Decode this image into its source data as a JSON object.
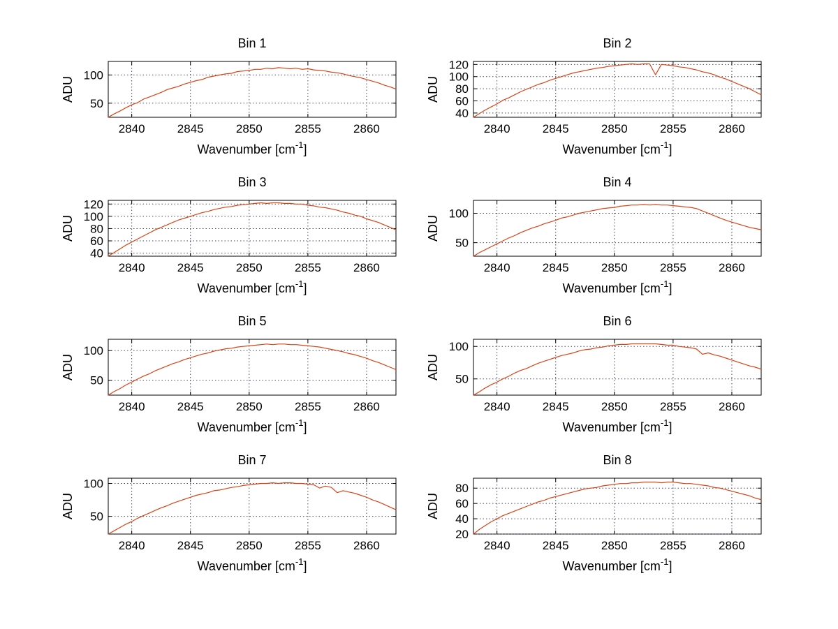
{
  "figure": {
    "background": "#ffffff",
    "line_color": "#d84315",
    "grid_color": "#44446a",
    "axis_color": "#000000",
    "text_color": "#000000"
  },
  "chart_data": [
    {
      "type": "line",
      "title": "Bin 1",
      "ylabel": "ADU",
      "xlabel": "Wavenumber [cm",
      "xlabel_sup": "-1",
      "xlabel_close": "]",
      "xlim": [
        2838,
        2862.5
      ],
      "ylim": [
        25,
        124
      ],
      "xticks": [
        2840,
        2845,
        2850,
        2855,
        2860
      ],
      "yticks": [
        50,
        100
      ],
      "x_start": 2838,
      "x_step": 0.5,
      "values": [
        25,
        31,
        36,
        42,
        47,
        51,
        57,
        61,
        65,
        69,
        74,
        77,
        80,
        84,
        87,
        90,
        92,
        96,
        98,
        100,
        102,
        103,
        106,
        107,
        108,
        110,
        110,
        112,
        111,
        113,
        112,
        111,
        112,
        110,
        111,
        109,
        108,
        107,
        105,
        104,
        102,
        99,
        97,
        95,
        92,
        89,
        86,
        82,
        79,
        75
      ]
    },
    {
      "type": "line",
      "title": "Bin 2",
      "ylabel": "ADU",
      "xlabel": "Wavenumber [cm",
      "xlabel_sup": "-1",
      "xlabel_close": "]",
      "xlim": [
        2838,
        2862.5
      ],
      "ylim": [
        33,
        125
      ],
      "xticks": [
        2840,
        2845,
        2850,
        2855,
        2860
      ],
      "yticks": [
        40,
        60,
        80,
        100,
        120
      ],
      "x_start": 2838,
      "x_step": 0.5,
      "values": [
        33,
        39,
        45,
        50,
        55,
        61,
        65,
        70,
        75,
        79,
        83,
        87,
        90,
        94,
        97,
        100,
        103,
        106,
        108,
        110,
        112,
        114,
        115,
        117,
        118,
        119,
        120,
        121,
        120,
        121,
        121,
        103,
        120,
        119,
        118,
        116,
        115,
        113,
        111,
        108,
        106,
        103,
        99,
        96,
        92,
        88,
        84,
        80,
        75,
        70
      ]
    },
    {
      "type": "line",
      "title": "Bin 3",
      "ylabel": "ADU",
      "xlabel": "Wavenumber [cm",
      "xlabel_sup": "-1",
      "xlabel_close": "]",
      "xlim": [
        2838,
        2862.5
      ],
      "ylim": [
        35,
        126
      ],
      "xticks": [
        2840,
        2845,
        2850,
        2855,
        2860
      ],
      "yticks": [
        40,
        60,
        80,
        100,
        120
      ],
      "x_start": 2838,
      "x_step": 0.5,
      "values": [
        35,
        41,
        47,
        53,
        58,
        63,
        68,
        73,
        78,
        82,
        86,
        90,
        94,
        97,
        100,
        103,
        106,
        108,
        111,
        113,
        115,
        116,
        118,
        119,
        120,
        121,
        122,
        121,
        122,
        122,
        121,
        121,
        120,
        120,
        118,
        117,
        115,
        114,
        112,
        110,
        107,
        105,
        102,
        100,
        96,
        93,
        90,
        86,
        82,
        78
      ]
    },
    {
      "type": "line",
      "title": "Bin 4",
      "ylabel": "ADU",
      "xlabel": "Wavenumber [cm",
      "xlabel_sup": "-1",
      "xlabel_close": "]",
      "xlim": [
        2838,
        2862.5
      ],
      "ylim": [
        27,
        122
      ],
      "xticks": [
        2840,
        2845,
        2850,
        2855,
        2860
      ],
      "yticks": [
        50,
        100
      ],
      "x_start": 2838,
      "x_step": 0.5,
      "values": [
        27,
        33,
        38,
        43,
        48,
        53,
        58,
        62,
        67,
        71,
        75,
        78,
        82,
        85,
        88,
        92,
        94,
        97,
        100,
        102,
        104,
        106,
        108,
        109,
        110,
        112,
        113,
        114,
        114,
        115,
        114,
        115,
        114,
        114,
        113,
        112,
        111,
        110,
        108,
        104,
        100,
        96,
        92,
        88,
        85,
        82,
        79,
        76,
        74,
        72
      ]
    },
    {
      "type": "line",
      "title": "Bin 5",
      "ylabel": "ADU",
      "xlabel": "Wavenumber [cm",
      "xlabel_sup": "-1",
      "xlabel_close": "]",
      "xlim": [
        2838,
        2862.5
      ],
      "ylim": [
        25,
        119
      ],
      "xticks": [
        2840,
        2845,
        2850,
        2855,
        2860
      ],
      "yticks": [
        50,
        100
      ],
      "x_start": 2838,
      "x_step": 0.5,
      "values": [
        25,
        31,
        36,
        42,
        47,
        52,
        57,
        61,
        66,
        70,
        74,
        78,
        81,
        85,
        88,
        91,
        94,
        96,
        99,
        101,
        103,
        104,
        106,
        107,
        108,
        109,
        110,
        111,
        110,
        111,
        111,
        110,
        110,
        109,
        108,
        107,
        106,
        104,
        102,
        100,
        98,
        95,
        93,
        90,
        87,
        83,
        80,
        76,
        72,
        68
      ]
    },
    {
      "type": "line",
      "title": "Bin 6",
      "ylabel": "ADU",
      "xlabel": "Wavenumber [cm",
      "xlabel_sup": "-1",
      "xlabel_close": "]",
      "xlim": [
        2838,
        2862.5
      ],
      "ylim": [
        25,
        111
      ],
      "xticks": [
        2840,
        2845,
        2850,
        2855,
        2860
      ],
      "yticks": [
        50,
        100
      ],
      "x_start": 2838,
      "x_step": 0.5,
      "values": [
        25,
        30,
        36,
        41,
        45,
        50,
        54,
        59,
        63,
        66,
        70,
        74,
        77,
        80,
        83,
        86,
        88,
        90,
        93,
        95,
        96,
        98,
        99,
        101,
        102,
        103,
        103,
        104,
        104,
        104,
        104,
        104,
        103,
        102,
        102,
        100,
        99,
        98,
        96,
        88,
        90,
        87,
        85,
        82,
        79,
        76,
        73,
        70,
        68,
        65
      ]
    },
    {
      "type": "line",
      "title": "Bin 7",
      "ylabel": "ADU",
      "xlabel": "Wavenumber [cm",
      "xlabel_sup": "-1",
      "xlabel_close": "]",
      "xlim": [
        2838,
        2862.5
      ],
      "ylim": [
        23,
        108
      ],
      "xticks": [
        2840,
        2845,
        2850,
        2855,
        2860
      ],
      "yticks": [
        50,
        100
      ],
      "x_start": 2838,
      "x_step": 0.5,
      "values": [
        23,
        28,
        33,
        38,
        42,
        47,
        51,
        55,
        59,
        63,
        66,
        70,
        73,
        76,
        79,
        82,
        84,
        86,
        89,
        90,
        92,
        94,
        95,
        97,
        98,
        99,
        100,
        100,
        101,
        100,
        101,
        101,
        100,
        100,
        99,
        98,
        93,
        96,
        94,
        86,
        89,
        87,
        85,
        82,
        79,
        75,
        72,
        68,
        64,
        60
      ]
    },
    {
      "type": "line",
      "title": "Bin 8",
      "ylabel": "ADU",
      "xlabel": "Wavenumber [cm",
      "xlabel_sup": "-1",
      "xlabel_close": "]",
      "xlim": [
        2838,
        2862.5
      ],
      "ylim": [
        20,
        93
      ],
      "xticks": [
        2840,
        2845,
        2850,
        2855,
        2860
      ],
      "yticks": [
        20,
        40,
        60,
        80
      ],
      "x_start": 2838,
      "x_step": 0.5,
      "values": [
        20,
        26,
        31,
        36,
        40,
        44,
        47,
        50,
        53,
        56,
        59,
        62,
        64,
        67,
        69,
        71,
        73,
        75,
        77,
        79,
        80,
        81,
        83,
        84,
        85,
        86,
        86,
        87,
        87,
        88,
        88,
        88,
        87,
        88,
        88,
        87,
        86,
        86,
        85,
        84,
        83,
        81,
        80,
        78,
        76,
        74,
        72,
        70,
        67,
        65
      ]
    }
  ]
}
